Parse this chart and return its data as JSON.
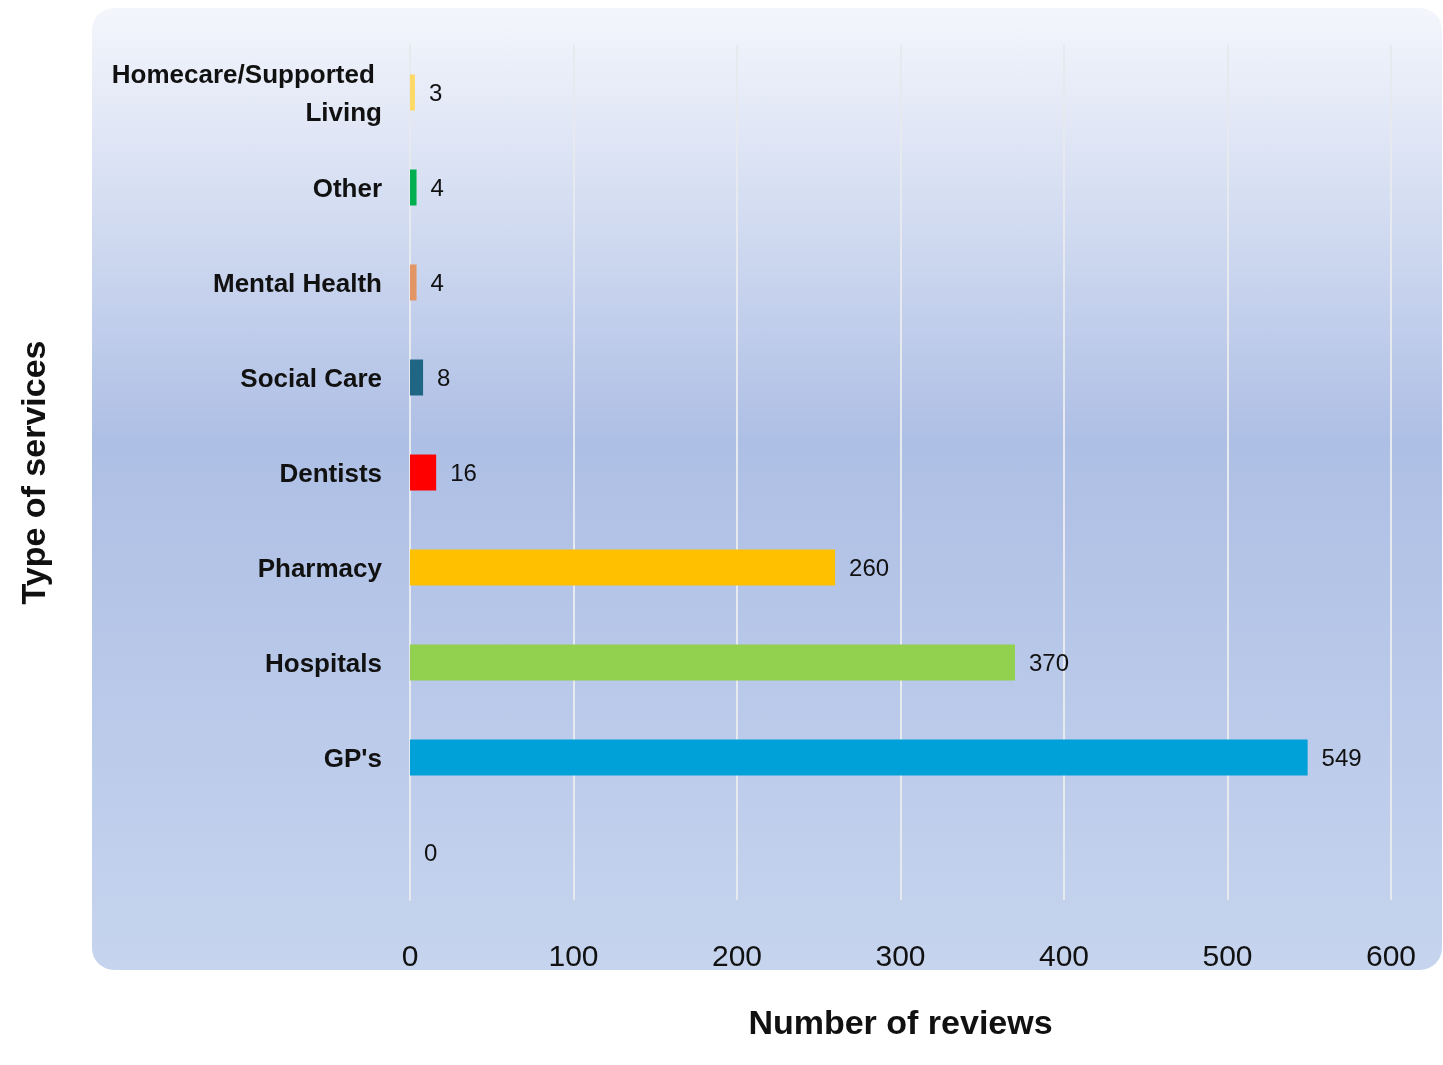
{
  "chart_data": {
    "type": "bar",
    "orientation": "horizontal",
    "xlabel": "Number of reviews",
    "ylabel": "Type of services",
    "categories": [
      "Homecare/Supported Living",
      "Other",
      "Mental Health",
      "Social Care",
      "Dentists",
      "Pharmacy",
      "Hospitals",
      "GP's",
      null
    ],
    "values": [
      3,
      4,
      4,
      8,
      16,
      260,
      370,
      549,
      0
    ],
    "colors": [
      "#ffd966",
      "#00b050",
      "#e39566",
      "#1f6685",
      "#ff0000",
      "#ffc000",
      "#92d050",
      "#00a0d8",
      "#00a0d8"
    ],
    "xlim": [
      0,
      600
    ],
    "xticks": [
      0,
      100,
      200,
      300,
      400,
      500,
      600
    ],
    "grid": "x",
    "data_labels": true
  }
}
